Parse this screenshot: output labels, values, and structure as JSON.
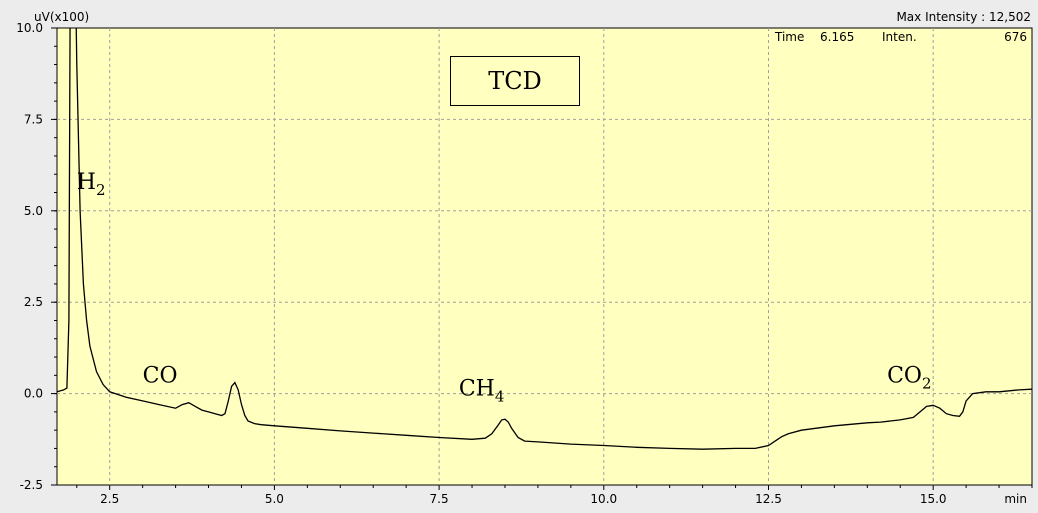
{
  "header": {
    "y_unit": "uV(x100)",
    "max_intensity_label": "Max Intensity :",
    "max_intensity_value": "12,502",
    "time_label": "Time",
    "time_value": "6.165",
    "inten_label": "Inten.",
    "inten_value": "676"
  },
  "detector_label": "TCD",
  "colors": {
    "plot_bg": "#ffffc0",
    "grid": "#a0a0a0",
    "trace": "#000000",
    "frame": "#ececec"
  },
  "chart_data": {
    "type": "line",
    "title": "",
    "xlabel": "min",
    "ylabel": "uV(x100)",
    "xlim": [
      1.7,
      16.5
    ],
    "ylim": [
      -2.5,
      10.0
    ],
    "x_ticks": [
      "2.5",
      "5.0",
      "7.5",
      "10.0",
      "12.5",
      "15.0"
    ],
    "y_ticks": [
      "10.0",
      "7.5",
      "5.0",
      "2.5",
      "0.0",
      "-2.5"
    ],
    "grid": true,
    "series": [
      {
        "x": [
          1.7,
          1.8,
          1.85,
          1.88,
          1.9,
          1.95,
          1.98,
          2.0,
          2.05,
          2.1,
          2.15,
          2.2,
          2.3,
          2.4,
          2.5,
          2.75,
          3.0,
          3.25,
          3.5,
          3.6,
          3.7,
          3.8,
          3.9,
          4.0,
          4.1,
          4.2,
          4.25,
          4.3,
          4.35,
          4.4,
          4.45,
          4.5,
          4.55,
          4.6,
          4.7,
          4.8,
          5.0,
          5.5,
          6.0,
          6.5,
          7.0,
          7.5,
          8.0,
          8.2,
          8.3,
          8.4,
          8.45,
          8.5,
          8.55,
          8.6,
          8.7,
          8.8,
          9.0,
          9.5,
          10.0,
          10.5,
          11.0,
          11.5,
          12.0,
          12.3,
          12.5,
          12.6,
          12.7,
          12.8,
          13.0,
          13.5,
          14.0,
          14.2,
          14.5,
          14.7,
          14.8,
          14.9,
          15.0,
          15.1,
          15.2,
          15.3,
          15.4,
          15.45,
          15.5,
          15.6,
          15.8,
          16.0,
          16.3,
          16.5
        ],
        "y": [
          0.05,
          0.1,
          0.15,
          2.0,
          11.0,
          11.5,
          11.5,
          9.0,
          5.0,
          3.0,
          2.0,
          1.3,
          0.6,
          0.25,
          0.05,
          -0.1,
          -0.2,
          -0.3,
          -0.4,
          -0.3,
          -0.25,
          -0.35,
          -0.45,
          -0.5,
          -0.55,
          -0.6,
          -0.55,
          -0.2,
          0.2,
          0.3,
          0.1,
          -0.3,
          -0.6,
          -0.75,
          -0.82,
          -0.85,
          -0.88,
          -0.95,
          -1.02,
          -1.08,
          -1.14,
          -1.2,
          -1.25,
          -1.22,
          -1.1,
          -0.85,
          -0.72,
          -0.7,
          -0.78,
          -0.95,
          -1.2,
          -1.3,
          -1.32,
          -1.38,
          -1.42,
          -1.47,
          -1.5,
          -1.52,
          -1.5,
          -1.5,
          -1.42,
          -1.3,
          -1.18,
          -1.1,
          -1.0,
          -0.88,
          -0.8,
          -0.78,
          -0.72,
          -0.65,
          -0.5,
          -0.35,
          -0.32,
          -0.4,
          -0.55,
          -0.6,
          -0.62,
          -0.5,
          -0.2,
          0.0,
          0.05,
          0.05,
          0.1,
          0.12
        ]
      }
    ],
    "peak_labels": [
      {
        "base": "H",
        "sub": "2",
        "x": 2.0,
        "y": 5.6
      },
      {
        "base": "CO",
        "sub": "",
        "x": 3.0,
        "y": 0.3
      },
      {
        "base": "CH",
        "sub": "4",
        "x": 7.8,
        "y": -0.05
      },
      {
        "base": "CO",
        "sub": "2",
        "x": 14.3,
        "y": 0.3
      }
    ]
  }
}
